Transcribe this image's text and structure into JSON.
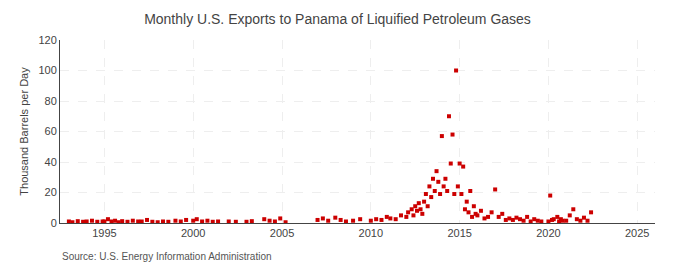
{
  "chart_data": {
    "type": "scatter",
    "title": "Monthly U.S. Exports to Panama of Liquified Petroleum Gases",
    "ylabel": "Thousand Barrels per Day",
    "annotations": [
      "Source: U.S. Energy Information Administration"
    ],
    "x": [
      1993.0,
      1993.2,
      1993.5,
      1993.8,
      1994.0,
      1994.3,
      1994.6,
      1994.9,
      1995.0,
      1995.2,
      1995.4,
      1995.6,
      1995.8,
      1996.0,
      1996.3,
      1996.6,
      1996.9,
      1997.1,
      1997.4,
      1997.7,
      1998.0,
      1998.3,
      1998.6,
      1999.0,
      1999.3,
      1999.6,
      2000.0,
      2000.2,
      2000.5,
      2000.8,
      2001.1,
      2001.4,
      2002.0,
      2002.4,
      2003.0,
      2003.3,
      2004.0,
      2004.3,
      2004.6,
      2004.9,
      2005.2,
      2007.0,
      2007.3,
      2007.6,
      2008.0,
      2008.3,
      2008.6,
      2009.0,
      2009.4,
      2010.0,
      2010.3,
      2010.6,
      2010.9,
      2011.1,
      2011.4,
      2011.7,
      2012.0,
      2012.1,
      2012.3,
      2012.4,
      2012.5,
      2012.6,
      2012.7,
      2012.8,
      2012.9,
      2013.0,
      2013.1,
      2013.2,
      2013.3,
      2013.4,
      2013.5,
      2013.6,
      2013.7,
      2013.8,
      2013.9,
      2014.0,
      2014.1,
      2014.2,
      2014.3,
      2014.4,
      2014.5,
      2014.6,
      2014.7,
      2014.8,
      2014.9,
      2015.0,
      2015.1,
      2015.2,
      2015.3,
      2015.4,
      2015.5,
      2015.6,
      2015.7,
      2015.8,
      2015.9,
      2016.0,
      2016.2,
      2016.4,
      2016.6,
      2016.8,
      2017.0,
      2017.2,
      2017.4,
      2017.6,
      2017.8,
      2018.0,
      2018.2,
      2018.4,
      2018.6,
      2018.8,
      2019.0,
      2019.2,
      2019.4,
      2019.6,
      2020.0,
      2020.1,
      2020.2,
      2020.3,
      2020.5,
      2020.6,
      2020.7,
      2020.8,
      2021.0,
      2021.2,
      2021.4,
      2021.6,
      2021.8,
      2022.0,
      2022.2,
      2022.4
    ],
    "values": [
      1.0,
      0.5,
      1.2,
      0.8,
      1.0,
      1.5,
      0.8,
      1.0,
      1.0,
      2.5,
      1.0,
      1.5,
      0.5,
      1.2,
      0.8,
      1.5,
      1.0,
      1.0,
      2.0,
      0.8,
      0.5,
      1.0,
      0.8,
      1.5,
      1.0,
      2.0,
      1.5,
      2.5,
      1.0,
      1.5,
      0.8,
      1.0,
      1.0,
      0.8,
      0.8,
      1.2,
      2.5,
      1.5,
      1.0,
      3.0,
      0.5,
      2.0,
      3.0,
      1.5,
      3.5,
      2.0,
      1.0,
      1.5,
      2.5,
      1.5,
      2.5,
      2.0,
      4.0,
      3.0,
      2.5,
      5.0,
      4.0,
      7.0,
      9.0,
      5.0,
      11.0,
      8.0,
      13.0,
      9.0,
      6.0,
      14.0,
      19.0,
      11.0,
      24.0,
      17.0,
      29.0,
      21.0,
      34.0,
      27.0,
      19.0,
      57.0,
      24.0,
      29.0,
      21.0,
      70.0,
      39.0,
      58.0,
      19.0,
      100.0,
      24.0,
      39.0,
      19.0,
      37.0,
      9.0,
      14.0,
      7.0,
      21.0,
      4.0,
      11.0,
      6.0,
      5.0,
      8.0,
      3.0,
      4.0,
      7.0,
      22.0,
      4.0,
      6.0,
      2.0,
      3.0,
      2.0,
      3.5,
      2.5,
      1.5,
      4.0,
      1.0,
      2.5,
      1.5,
      1.0,
      1.0,
      18.0,
      2.0,
      2.5,
      4.0,
      1.0,
      2.5,
      1.5,
      1.5,
      5.0,
      9.0,
      2.5,
      1.5,
      3.5,
      1.5,
      7.0
    ],
    "color": "#CC0000",
    "marker": "square",
    "xlim": [
      1992.5,
      2026
    ],
    "ylim": [
      0,
      120
    ],
    "xticks": [
      1995,
      2000,
      2005,
      2010,
      2015,
      2020,
      2025
    ],
    "yticks": [
      0,
      20,
      40,
      60,
      80,
      100,
      120
    ],
    "grid": true
  }
}
